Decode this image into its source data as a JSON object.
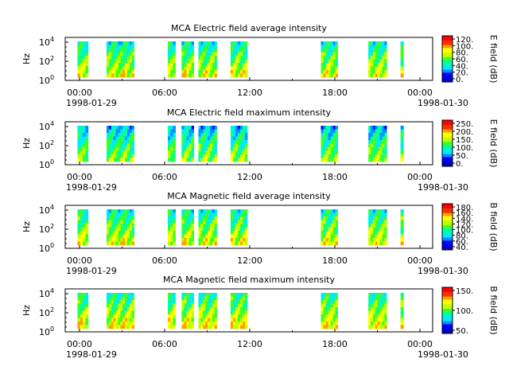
{
  "colors": {
    "colormap": [
      "#0000c8",
      "#0000ff",
      "#0090ff",
      "#00e8ff",
      "#00ffa0",
      "#40ff20",
      "#c0ff00",
      "#ffff00",
      "#ffa000",
      "#ff3000",
      "#ff0000"
    ]
  },
  "chart_data": [
    {
      "type": "heatmap",
      "title": "MCA  Electric field average intensity",
      "ylabel": "Hz",
      "y_scale": "log",
      "ytick_exponents": [
        "4",
        "2",
        "0"
      ],
      "ytick_base": "10",
      "xtick_labels": [
        "00:00",
        "06:00",
        "12:00",
        "18:00",
        "00:00"
      ],
      "x_dates": [
        "1998-01-29",
        "1998-01-30"
      ],
      "colorbar_label": "E field (dB)",
      "colorbar_ticks": [
        "120.",
        "100.",
        "80.",
        "60.",
        "40.",
        "20.",
        "0."
      ],
      "colorbar_range": [
        0,
        130
      ],
      "data_hours": [
        [
          0.8,
          1.5
        ],
        [
          2.7,
          4.5
        ],
        [
          6.7,
          7.2
        ],
        [
          7.6,
          8.4
        ],
        [
          8.7,
          9.9
        ],
        [
          10.8,
          11.9
        ],
        [
          16.7,
          17.8
        ],
        [
          19.8,
          21.0
        ],
        [
          21.9,
          22.1
        ]
      ],
      "level_db": 60
    },
    {
      "type": "heatmap",
      "title": "MCA  Electric field maximum intensity",
      "ylabel": "Hz",
      "y_scale": "log",
      "ytick_exponents": [
        "4",
        "2",
        "0"
      ],
      "ytick_base": "10",
      "xtick_labels": [
        "00:00",
        "06:00",
        "12:00",
        "18:00",
        "00:00"
      ],
      "x_dates": [
        "1998-01-29",
        "1998-01-30"
      ],
      "colorbar_label": "E field (dB)",
      "colorbar_ticks": [
        "250.",
        "200.",
        "150.",
        "100.",
        "50.",
        "0."
      ],
      "colorbar_range": [
        0,
        260
      ],
      "data_hours": [
        [
          0.8,
          1.5
        ],
        [
          2.7,
          4.5
        ],
        [
          6.7,
          7.2
        ],
        [
          7.6,
          8.4
        ],
        [
          8.7,
          9.9
        ],
        [
          10.8,
          11.9
        ],
        [
          16.7,
          17.8
        ],
        [
          19.8,
          21.0
        ],
        [
          21.9,
          22.1
        ]
      ],
      "level_db": 100
    },
    {
      "type": "heatmap",
      "title": "MCA  Magnetic field average intensity",
      "ylabel": "Hz",
      "y_scale": "log",
      "ytick_exponents": [
        "4",
        "2",
        "0"
      ],
      "ytick_base": "10",
      "xtick_labels": [
        "00:00",
        "06:00",
        "12:00",
        "18:00",
        "00:00"
      ],
      "x_dates": [
        "1998-01-29",
        "1998-01-30"
      ],
      "colorbar_label": "B field (dB)",
      "colorbar_ticks": [
        "180.",
        "160.",
        "140.",
        "120.",
        "100.",
        "80.",
        "60.",
        "40."
      ],
      "colorbar_range": [
        40,
        190
      ],
      "data_hours": [
        [
          0.8,
          1.5
        ],
        [
          2.7,
          4.5
        ],
        [
          6.7,
          7.2
        ],
        [
          7.6,
          8.4
        ],
        [
          8.7,
          9.9
        ],
        [
          10.8,
          11.9
        ],
        [
          16.7,
          17.8
        ],
        [
          19.8,
          21.0
        ],
        [
          21.9,
          22.1
        ]
      ],
      "level_db": 110
    },
    {
      "type": "heatmap",
      "title": "MCA  Magnetic field maximum intensity",
      "ylabel": "Hz",
      "y_scale": "log",
      "ytick_exponents": [
        "4",
        "2",
        "0"
      ],
      "ytick_base": "10",
      "xtick_labels": [
        "00:00",
        "06:00",
        "12:00",
        "18:00",
        "00:00"
      ],
      "x_dates": [
        "1998-01-29",
        "1998-01-30"
      ],
      "colorbar_label": "B field (dB)",
      "colorbar_ticks": [
        "150.",
        "100.",
        "50."
      ],
      "colorbar_range": [
        10,
        200
      ],
      "data_hours": [
        [
          0.8,
          1.5
        ],
        [
          2.7,
          4.5
        ],
        [
          6.7,
          7.2
        ],
        [
          7.6,
          8.4
        ],
        [
          8.7,
          9.9
        ],
        [
          10.8,
          11.9
        ],
        [
          16.7,
          17.8
        ],
        [
          19.8,
          21.0
        ],
        [
          21.9,
          22.1
        ]
      ],
      "level_db": 105
    }
  ]
}
